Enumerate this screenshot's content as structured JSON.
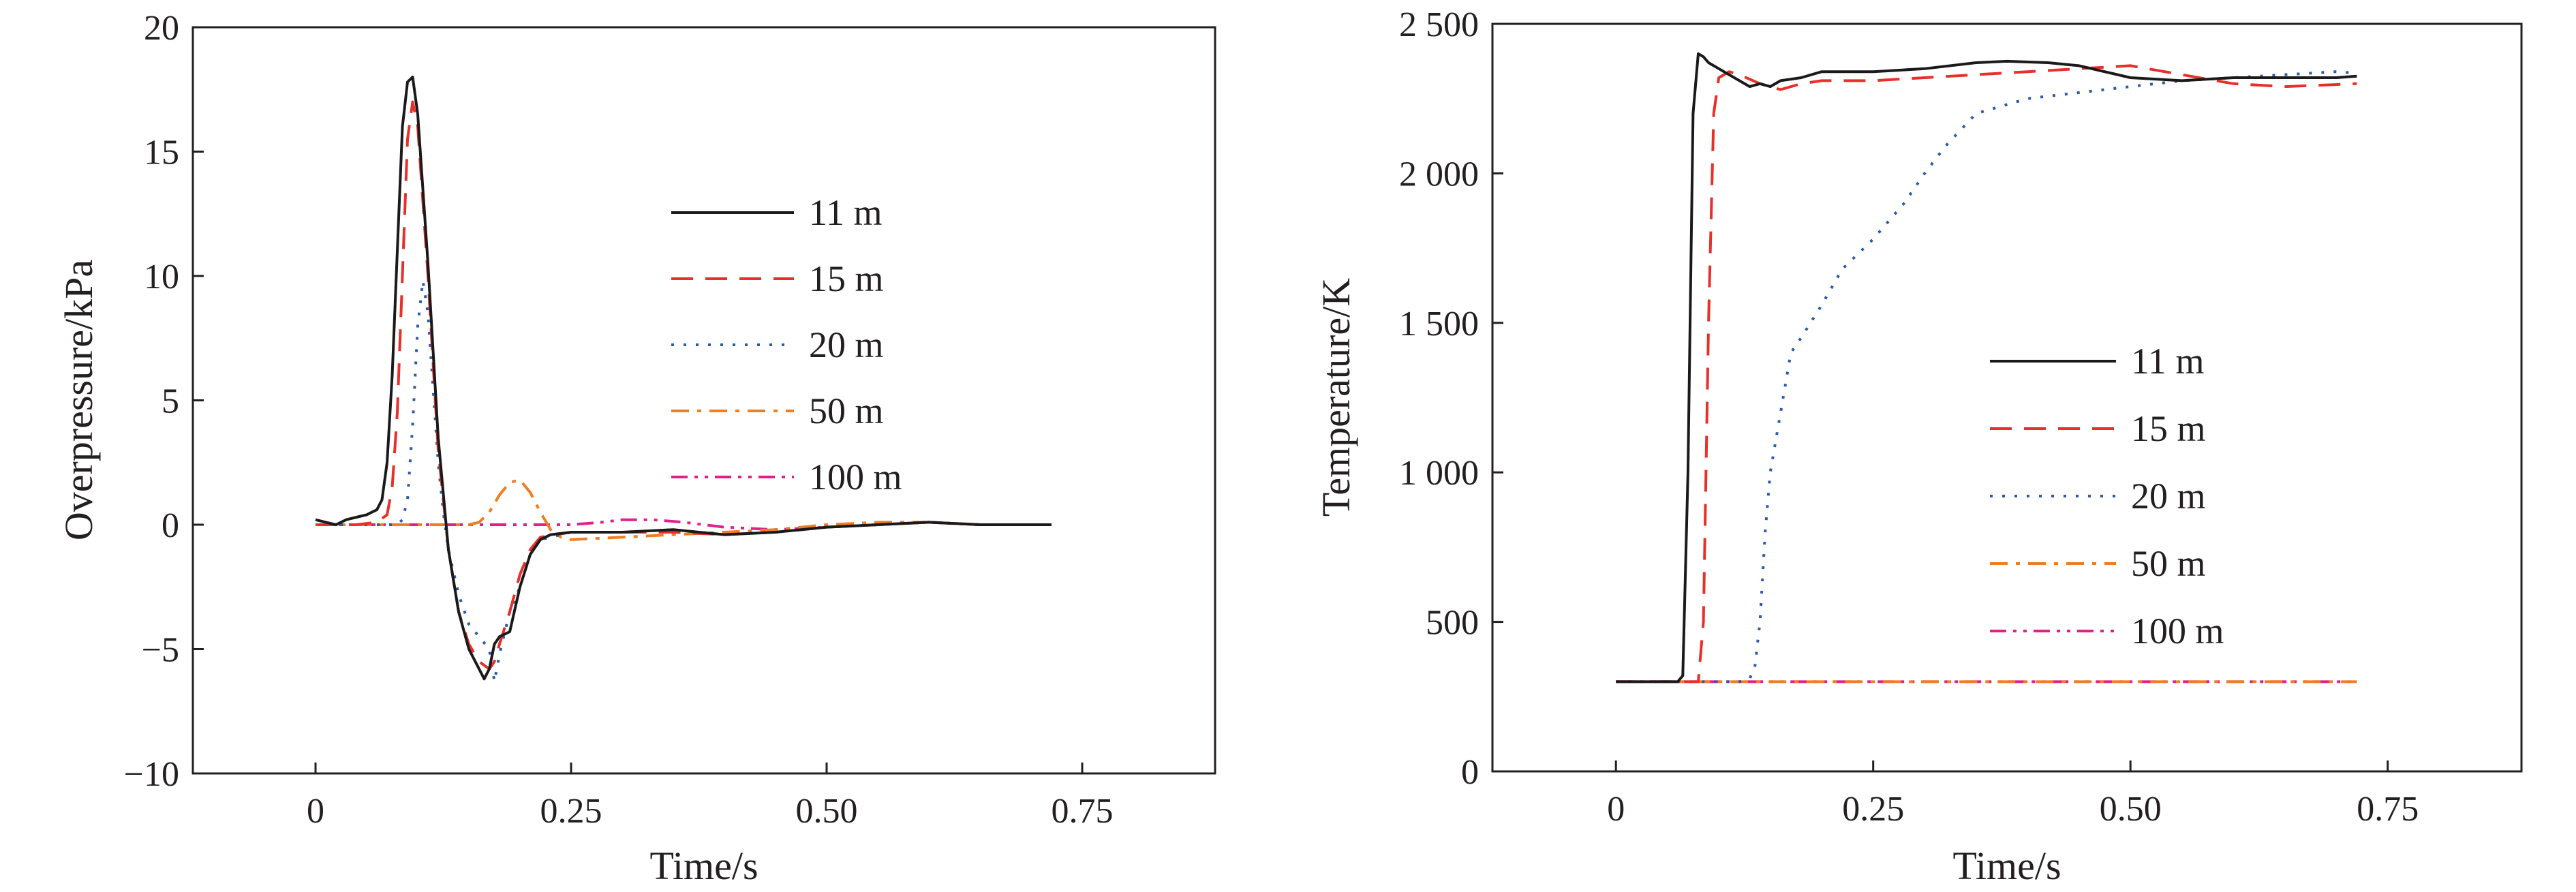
{
  "chart_data": [
    {
      "type": "line",
      "title": "",
      "xlabel": "Time/s",
      "ylabel": "Overpressure/kPa",
      "xlim": [
        -0.12,
        0.88
      ],
      "ylim": [
        -10,
        20
      ],
      "xticks": [
        0,
        0.25,
        0.5,
        0.75
      ],
      "xtick_labels": [
        "0",
        "0.25",
        "0.50",
        "0.75"
      ],
      "yticks": [
        -10,
        -5,
        0,
        5,
        10,
        15,
        20
      ],
      "ytick_labels": [
        "−10",
        "−5",
        "0",
        "5",
        "10",
        "15",
        "20"
      ],
      "grid": false,
      "legend_position": "center-right",
      "series": [
        {
          "name": "11 m",
          "color": "#1a1a1a",
          "dash": "solid",
          "x": [
            0,
            0.01,
            0.02,
            0.03,
            0.04,
            0.05,
            0.06,
            0.065,
            0.07,
            0.075,
            0.08,
            0.085,
            0.09,
            0.095,
            0.1,
            0.105,
            0.11,
            0.115,
            0.12,
            0.13,
            0.14,
            0.15,
            0.16,
            0.165,
            0.17,
            0.175,
            0.18,
            0.19,
            0.2,
            0.21,
            0.22,
            0.23,
            0.25,
            0.3,
            0.35,
            0.4,
            0.45,
            0.5,
            0.55,
            0.6,
            0.65,
            0.72
          ],
          "y": [
            0.2,
            0.1,
            0,
            0.2,
            0.3,
            0.4,
            0.6,
            1.0,
            2.5,
            6.0,
            11.0,
            16.0,
            17.8,
            18.0,
            16.5,
            13.5,
            10.5,
            7.0,
            3.5,
            -1.0,
            -3.5,
            -5.0,
            -5.8,
            -6.2,
            -5.8,
            -4.8,
            -4.5,
            -4.3,
            -2.5,
            -1.2,
            -0.6,
            -0.4,
            -0.3,
            -0.3,
            -0.2,
            -0.4,
            -0.3,
            -0.1,
            0.0,
            0.1,
            0.0,
            0.0
          ]
        },
        {
          "name": "15 m",
          "color": "#e8302a",
          "dash": "long",
          "x": [
            0,
            0.02,
            0.04,
            0.06,
            0.07,
            0.075,
            0.08,
            0.085,
            0.09,
            0.095,
            0.1,
            0.105,
            0.11,
            0.115,
            0.12,
            0.13,
            0.14,
            0.15,
            0.16,
            0.17,
            0.175,
            0.18,
            0.19,
            0.2,
            0.21,
            0.22,
            0.25,
            0.3,
            0.35,
            0.4,
            0.45,
            0.5,
            0.55,
            0.6,
            0.65,
            0.72
          ],
          "y": [
            0,
            0,
            0,
            0.1,
            0.4,
            1.5,
            4.5,
            10.0,
            15.5,
            17.0,
            16.0,
            13.0,
            10.0,
            6.5,
            3.0,
            -1.0,
            -3.5,
            -4.8,
            -5.5,
            -5.8,
            -5.5,
            -4.8,
            -3.5,
            -2.0,
            -1.0,
            -0.5,
            -0.3,
            -0.3,
            -0.3,
            -0.4,
            -0.3,
            -0.1,
            0.0,
            0.1,
            0.0,
            0.0
          ]
        },
        {
          "name": "20 m",
          "color": "#2b5aa8",
          "dash": "dotted",
          "x": [
            0,
            0.05,
            0.08,
            0.085,
            0.09,
            0.095,
            0.1,
            0.105,
            0.11,
            0.115,
            0.12,
            0.125,
            0.13,
            0.14,
            0.15,
            0.16,
            0.17,
            0.175,
            0.18,
            0.19,
            0.2,
            0.21,
            0.22,
            0.25,
            0.3,
            0.35,
            0.4,
            0.45,
            0.5,
            0.55,
            0.6,
            0.65,
            0.72
          ],
          "y": [
            0,
            0,
            0,
            0.2,
            1.0,
            4.0,
            8.0,
            9.8,
            8.5,
            5.5,
            2.5,
            0.5,
            -1.0,
            -2.8,
            -4.0,
            -4.5,
            -5.0,
            -6.3,
            -5.2,
            -3.5,
            -2.5,
            -1.2,
            -0.6,
            -0.3,
            -0.3,
            -0.2,
            -0.4,
            -0.3,
            -0.1,
            0.0,
            0.1,
            0.0,
            0.0
          ]
        },
        {
          "name": "50 m",
          "color": "#ef7d22",
          "dash": "dashdot",
          "x": [
            0,
            0.05,
            0.1,
            0.15,
            0.16,
            0.17,
            0.18,
            0.19,
            0.2,
            0.21,
            0.22,
            0.23,
            0.24,
            0.25,
            0.3,
            0.35,
            0.4,
            0.45,
            0.5,
            0.55,
            0.6,
            0.65,
            0.72
          ],
          "y": [
            0,
            0,
            0,
            0,
            0.1,
            0.5,
            1.2,
            1.7,
            1.8,
            1.3,
            0.5,
            -0.2,
            -0.5,
            -0.6,
            -0.5,
            -0.4,
            -0.3,
            -0.2,
            0.0,
            0.1,
            0.1,
            0.0,
            0.0
          ]
        },
        {
          "name": "100 m",
          "color": "#e0218a",
          "dash": "dashdotdot",
          "x": [
            0,
            0.05,
            0.1,
            0.15,
            0.2,
            0.25,
            0.28,
            0.3,
            0.33,
            0.36,
            0.4,
            0.45,
            0.5,
            0.55,
            0.6,
            0.65,
            0.72
          ],
          "y": [
            0,
            0,
            0,
            0,
            0,
            0,
            0.1,
            0.2,
            0.2,
            0.1,
            -0.1,
            -0.2,
            -0.1,
            0.0,
            0.1,
            0.0,
            0.0
          ]
        }
      ]
    },
    {
      "type": "line",
      "title": "",
      "xlabel": "Time/s",
      "ylabel": "Temperature/K",
      "xlim": [
        -0.12,
        0.88
      ],
      "ylim": [
        0,
        2500
      ],
      "xticks": [
        0,
        0.25,
        0.5,
        0.75
      ],
      "xtick_labels": [
        "0",
        "0.25",
        "0.50",
        "0.75"
      ],
      "yticks": [
        0,
        500,
        1000,
        1500,
        2000,
        2500
      ],
      "ytick_labels": [
        "0",
        "500",
        "1 000",
        "1 500",
        "2 000",
        "2 500"
      ],
      "grid": false,
      "legend_position": "center-right",
      "series": [
        {
          "name": "11 m",
          "color": "#1a1a1a",
          "dash": "solid",
          "x": [
            0,
            0.05,
            0.06,
            0.065,
            0.07,
            0.075,
            0.08,
            0.085,
            0.09,
            0.1,
            0.11,
            0.12,
            0.13,
            0.14,
            0.15,
            0.16,
            0.18,
            0.2,
            0.25,
            0.3,
            0.35,
            0.38,
            0.42,
            0.45,
            0.5,
            0.55,
            0.6,
            0.65,
            0.7,
            0.72
          ],
          "y": [
            300,
            300,
            300,
            320,
            1000,
            2200,
            2400,
            2390,
            2370,
            2350,
            2330,
            2310,
            2290,
            2300,
            2290,
            2310,
            2320,
            2340,
            2340,
            2350,
            2370,
            2375,
            2370,
            2360,
            2320,
            2310,
            2320,
            2320,
            2320,
            2325
          ]
        },
        {
          "name": "15 m",
          "color": "#e8302a",
          "dash": "long",
          "x": [
            0,
            0.07,
            0.08,
            0.085,
            0.09,
            0.095,
            0.1,
            0.11,
            0.12,
            0.14,
            0.16,
            0.18,
            0.2,
            0.25,
            0.3,
            0.35,
            0.4,
            0.45,
            0.5,
            0.55,
            0.6,
            0.65,
            0.72
          ],
          "y": [
            300,
            300,
            300,
            500,
            1500,
            2200,
            2320,
            2340,
            2330,
            2300,
            2280,
            2300,
            2310,
            2310,
            2320,
            2330,
            2340,
            2350,
            2360,
            2330,
            2300,
            2290,
            2300
          ]
        },
        {
          "name": "20 m",
          "color": "#2b5aa8",
          "dash": "dotted",
          "x": [
            0,
            0.1,
            0.12,
            0.13,
            0.135,
            0.14,
            0.145,
            0.15,
            0.16,
            0.17,
            0.18,
            0.2,
            0.22,
            0.25,
            0.28,
            0.3,
            0.32,
            0.35,
            0.4,
            0.45,
            0.5,
            0.55,
            0.6,
            0.65,
            0.7,
            0.72
          ],
          "y": [
            300,
            300,
            300,
            310,
            350,
            500,
            800,
            1000,
            1200,
            1400,
            1450,
            1560,
            1680,
            1780,
            1900,
            2000,
            2090,
            2200,
            2250,
            2270,
            2290,
            2310,
            2320,
            2330,
            2340,
            2335
          ]
        },
        {
          "name": "50 m",
          "color": "#ef7d22",
          "dash": "dashdot",
          "x": [
            0,
            0.72
          ],
          "y": [
            300,
            300
          ]
        },
        {
          "name": "100 m",
          "color": "#e0218a",
          "dash": "dashdotdot",
          "x": [
            0,
            0.72
          ],
          "y": [
            300,
            300
          ]
        }
      ]
    }
  ]
}
